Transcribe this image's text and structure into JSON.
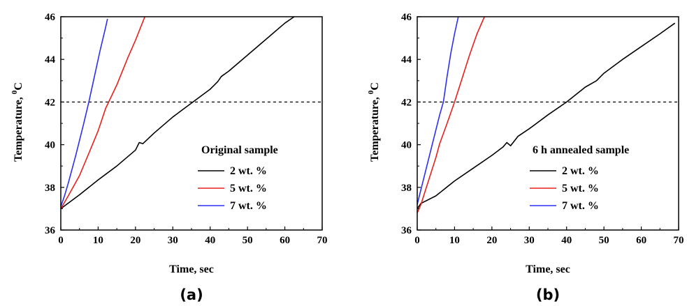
{
  "chart_data": [
    {
      "type": "line",
      "panel_label": "(a)",
      "xlabel": "Time, sec",
      "ylabel": "Temperature, ",
      "ylabel_superscript": "0",
      "ylabel_unit": "C",
      "xlim": [
        0,
        70
      ],
      "ylim": [
        36,
        46
      ],
      "xticks": [
        0,
        10,
        20,
        30,
        40,
        50,
        60,
        70
      ],
      "yticks": [
        36,
        38,
        40,
        42,
        44,
        46
      ],
      "grid": false,
      "legend_title": "Original sample",
      "legend_position": "right",
      "reference_line": {
        "y": 42,
        "style": "dashed"
      },
      "series": [
        {
          "name": "2 wt. %",
          "color": "#000000",
          "points": [
            [
              0,
              37.0
            ],
            [
              5,
              37.65
            ],
            [
              10,
              38.35
            ],
            [
              15,
              39.0
            ],
            [
              20,
              39.75
            ],
            [
              21,
              40.1
            ],
            [
              22,
              40.05
            ],
            [
              25,
              40.55
            ],
            [
              30,
              41.3
            ],
            [
              35,
              41.95
            ],
            [
              40,
              42.6
            ],
            [
              42,
              42.95
            ],
            [
              43,
              43.2
            ],
            [
              45,
              43.45
            ],
            [
              50,
              44.2
            ],
            [
              55,
              44.95
            ],
            [
              60,
              45.7
            ],
            [
              62.5,
              46.0
            ]
          ]
        },
        {
          "name": "5 wt. %",
          "color": "#e8201c",
          "points": [
            [
              0,
              37.0
            ],
            [
              2,
              37.6
            ],
            [
              5,
              38.55
            ],
            [
              8,
              39.8
            ],
            [
              10,
              40.65
            ],
            [
              12,
              41.7
            ],
            [
              15,
              42.8
            ],
            [
              18,
              44.1
            ],
            [
              20,
              44.9
            ],
            [
              22.5,
              46.0
            ]
          ]
        },
        {
          "name": "7 wt. %",
          "color": "#2a2ff0",
          "points": [
            [
              0,
              37.1
            ],
            [
              1,
              37.6
            ],
            [
              2,
              38.2
            ],
            [
              4,
              39.5
            ],
            [
              6,
              40.9
            ],
            [
              7.5,
              42.0
            ],
            [
              9,
              43.2
            ],
            [
              10.5,
              44.4
            ],
            [
              12,
              45.5
            ],
            [
              12.5,
              45.9
            ]
          ]
        }
      ]
    },
    {
      "type": "line",
      "panel_label": "(b)",
      "xlabel": "Time, sec",
      "ylabel": "Temperature, ",
      "ylabel_superscript": "0",
      "ylabel_unit": "C",
      "xlim": [
        0,
        70
      ],
      "ylim": [
        36,
        46
      ],
      "xticks": [
        0,
        10,
        20,
        30,
        40,
        50,
        60,
        70
      ],
      "yticks": [
        36,
        38,
        40,
        42,
        44,
        46
      ],
      "grid": false,
      "legend_title": "6 h annealed sample",
      "legend_position": "right",
      "reference_line": {
        "y": 42,
        "style": "dashed"
      },
      "series": [
        {
          "name": "2 wt. %",
          "color": "#000000",
          "points": [
            [
              0,
              37.0
            ],
            [
              1,
              37.25
            ],
            [
              5,
              37.6
            ],
            [
              10,
              38.3
            ],
            [
              15,
              38.9
            ],
            [
              20,
              39.5
            ],
            [
              23,
              39.9
            ],
            [
              24,
              40.1
            ],
            [
              25,
              39.95
            ],
            [
              27,
              40.4
            ],
            [
              30,
              40.75
            ],
            [
              35,
              41.4
            ],
            [
              40,
              42.0
            ],
            [
              45,
              42.7
            ],
            [
              48,
              43.0
            ],
            [
              50,
              43.35
            ],
            [
              55,
              44.0
            ],
            [
              60,
              44.6
            ],
            [
              65,
              45.2
            ],
            [
              69,
              45.7
            ]
          ]
        },
        {
          "name": "5 wt. %",
          "color": "#e8201c",
          "points": [
            [
              0,
              36.8
            ],
            [
              1,
              37.2
            ],
            [
              3,
              38.3
            ],
            [
              5,
              39.4
            ],
            [
              6,
              40.05
            ],
            [
              8,
              41.0
            ],
            [
              10,
              42.0
            ],
            [
              12,
              43.1
            ],
            [
              14,
              44.2
            ],
            [
              16,
              45.2
            ],
            [
              18,
              46.0
            ]
          ]
        },
        {
          "name": "7 wt. %",
          "color": "#2a2ff0",
          "points": [
            [
              0,
              37.2
            ],
            [
              1,
              37.9
            ],
            [
              2,
              38.6
            ],
            [
              4,
              40.0
            ],
            [
              6,
              41.4
            ],
            [
              7,
              42.0
            ],
            [
              8,
              43.2
            ],
            [
              9,
              44.3
            ],
            [
              10,
              45.2
            ],
            [
              11,
              46.0
            ]
          ]
        }
      ]
    }
  ]
}
